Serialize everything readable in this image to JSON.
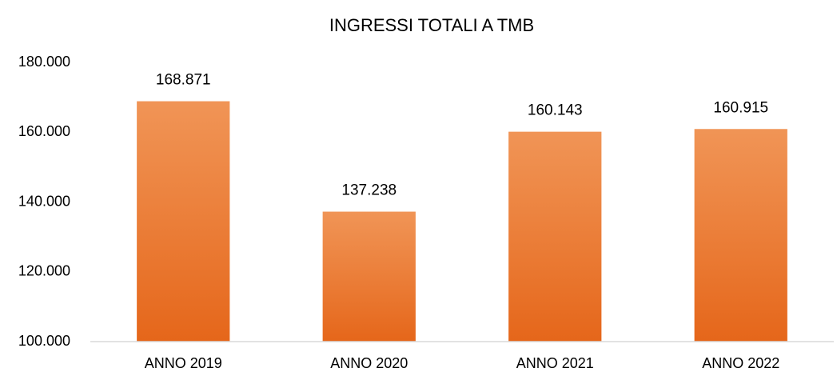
{
  "chart_data": {
    "type": "bar",
    "title": "INGRESSI TOTALI A TMB",
    "categories": [
      "ANNO 2019",
      "ANNO 2020",
      "ANNO 2021",
      "ANNO 2022"
    ],
    "values": [
      168871,
      137238,
      160143,
      160915
    ],
    "value_labels": [
      "168.871",
      "137.238",
      "160.143",
      "160.915"
    ],
    "color": "#ed7d31",
    "ylim": [
      100000,
      180000
    ],
    "yticks": [
      {
        "value": 100000,
        "label": "100.000"
      },
      {
        "value": 120000,
        "label": "120.000"
      },
      {
        "value": 140000,
        "label": "140.000"
      },
      {
        "value": 160000,
        "label": "160.000"
      },
      {
        "value": 180000,
        "label": "180.000"
      }
    ],
    "grid": false
  }
}
